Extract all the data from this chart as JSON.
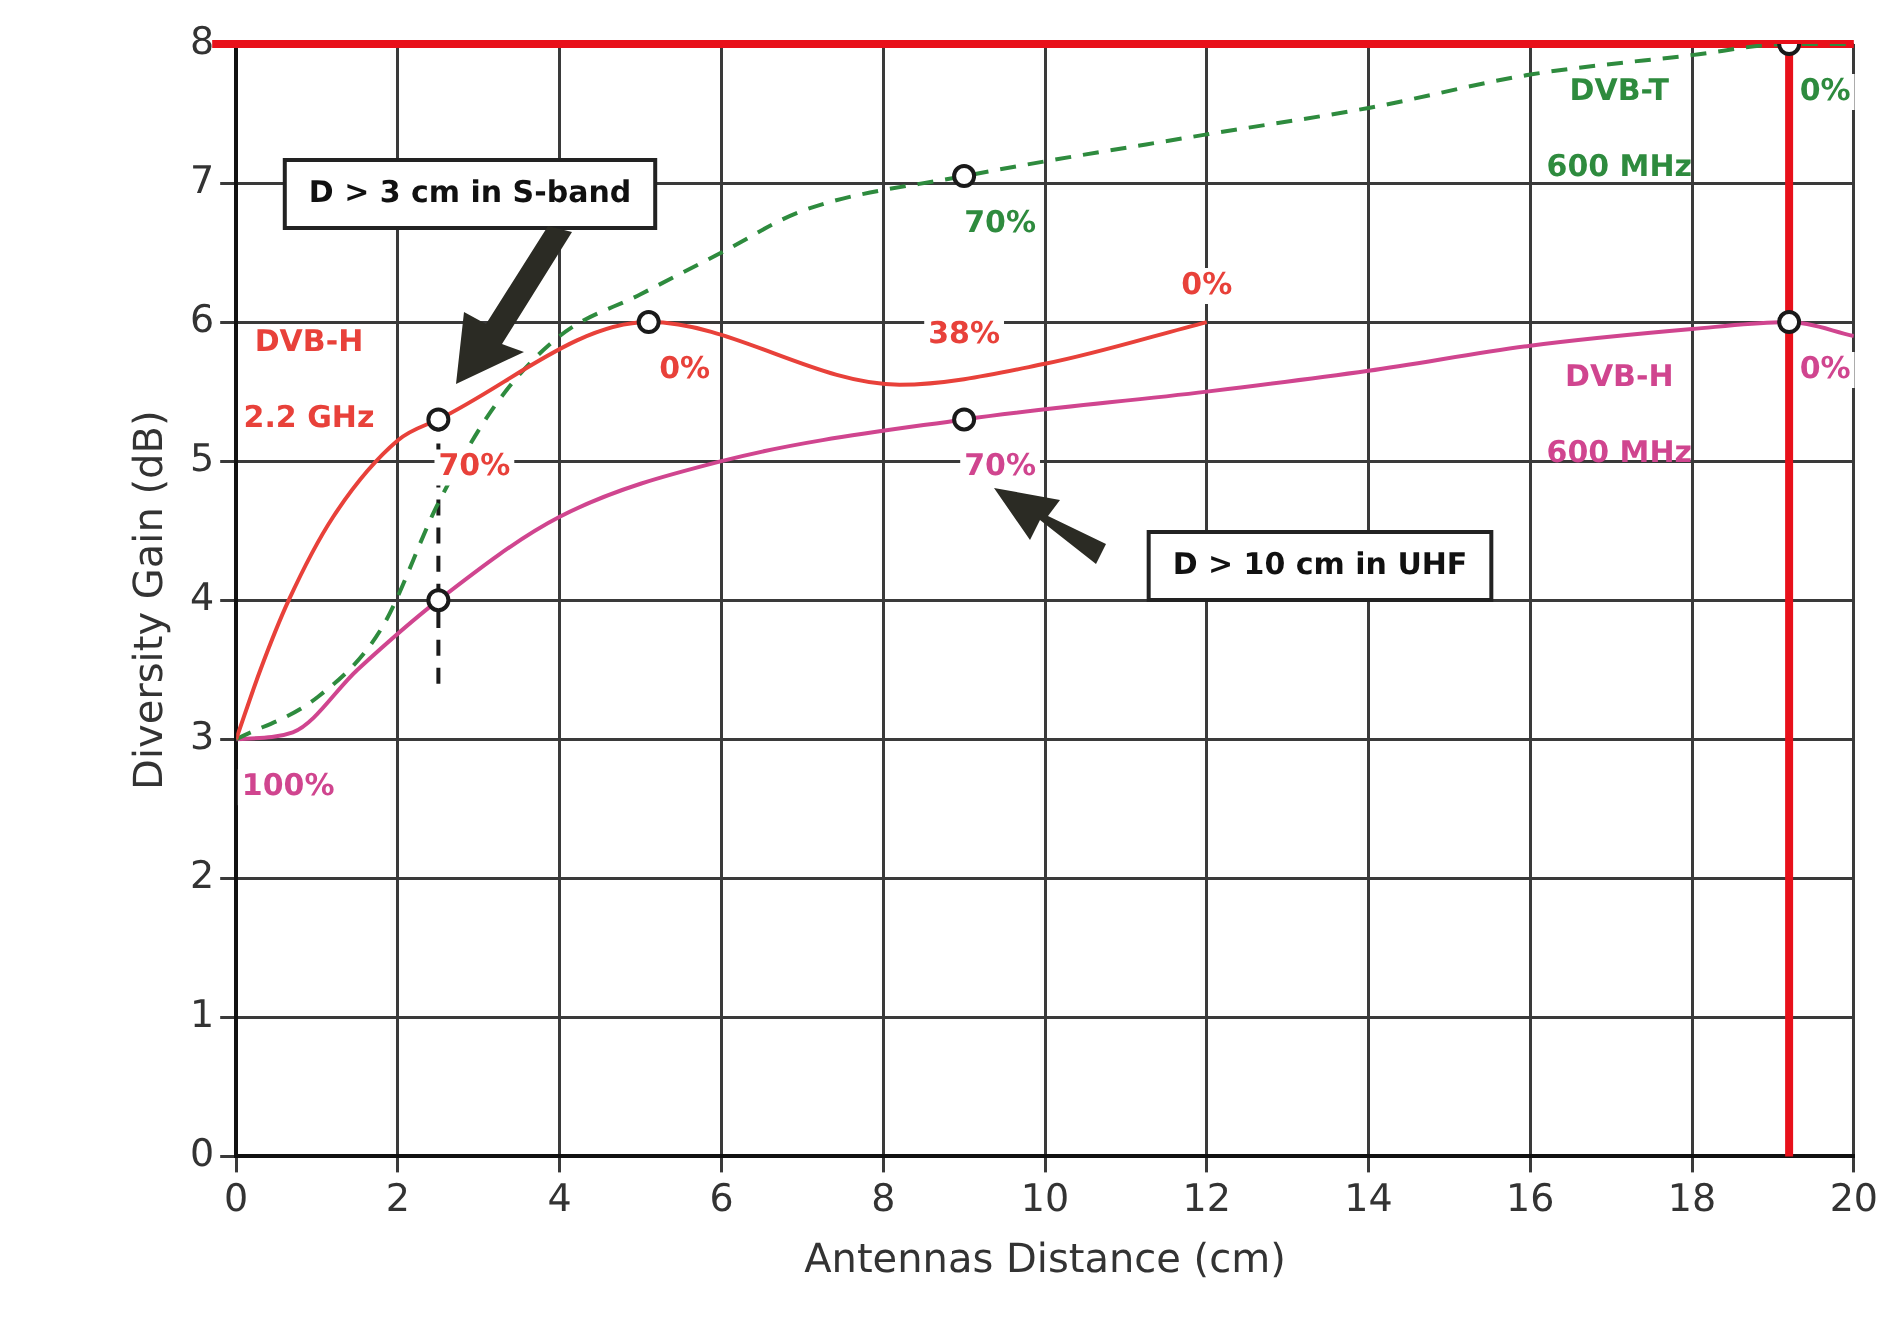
{
  "chart_data": {
    "type": "line",
    "xlabel": "Antennas Distance (cm)",
    "ylabel": "Diversity Gain (dB)",
    "xlim": [
      0,
      20
    ],
    "xticks": [
      0,
      2,
      4,
      6,
      8,
      10,
      12,
      14,
      16,
      18,
      20
    ],
    "ylim": [
      0,
      8
    ],
    "yticks": [
      0,
      1,
      2,
      3,
      4,
      5,
      6,
      7,
      8
    ],
    "grid": true,
    "legend": false,
    "series": [
      {
        "name": "DVB-H 2.2 GHz",
        "color": "#e8413a",
        "type": "line",
        "marker": "none",
        "line_style": "solid",
        "x": [
          0,
          0.3,
          0.65,
          1.2,
          2,
          2.5,
          5.1,
          8.2,
          10,
          12
        ],
        "values": [
          3,
          3.5,
          4,
          4.6,
          5.15,
          5.3,
          6.0,
          5.55,
          5.7,
          6.0
        ]
      },
      {
        "name": "DVB-T 600 MHz",
        "color": "#2e8b3e",
        "type": "line",
        "marker": "none",
        "line_style": "dashed",
        "x": [
          0,
          1,
          1.8,
          2.5,
          3.2,
          4,
          5,
          6,
          7,
          9,
          12,
          14,
          16,
          18,
          19.2,
          20
        ],
        "values": [
          3,
          3.3,
          3.8,
          4.7,
          5.4,
          5.9,
          6.2,
          6.5,
          6.8,
          7.05,
          7.35,
          7.54,
          7.78,
          7.92,
          8.0,
          8.0
        ]
      },
      {
        "name": "DVB-H 600 MHz",
        "color": "#d0458f",
        "type": "line",
        "marker": "none",
        "line_style": "solid",
        "x": [
          0,
          0.7,
          1.5,
          2.5,
          4,
          6,
          9,
          12,
          14,
          16,
          18,
          19.2,
          20
        ],
        "values": [
          3,
          3.05,
          3.5,
          4.0,
          4.6,
          5.0,
          5.3,
          5.5,
          5.65,
          5.83,
          5.95,
          6.0,
          5.9
        ]
      },
      {
        "color": "#1a1a1a",
        "type": "line",
        "marker": "none",
        "line_style": "dashed",
        "x": [
          2.5,
          2.5
        ],
        "values": [
          3.4,
          5.3
        ]
      },
      {
        "color": "#1a1a1a",
        "type": "scatter",
        "marker": "circle",
        "x": [
          2.5,
          2.5,
          5.1,
          9,
          9,
          19.2,
          19.2
        ],
        "values": [
          5.3,
          4.0,
          6.0,
          7.05,
          5.3,
          8.0,
          6.0
        ]
      }
    ],
    "ref_lines": [
      {
        "axis": "y",
        "value": 8,
        "color": "#e8101a"
      },
      {
        "axis": "x",
        "value": 19.2,
        "color": "#e8101a"
      }
    ],
    "annotations": [
      "D > 3 cm in S-band",
      "D > 10 cm in UHF",
      {
        "text": "70%",
        "x": 2.5,
        "y": 5.3
      },
      {
        "text": "0%",
        "x": 5.1,
        "y": 6.0
      },
      {
        "text": "38%",
        "x": 9,
        "y": 5.65
      },
      {
        "text": "0%",
        "x": 12,
        "y": 6.0
      },
      {
        "text": "70%",
        "x": 9,
        "y": 7.05
      },
      {
        "text": "0%",
        "x": 19.2,
        "y": 8.0
      },
      {
        "text": "70%",
        "x": 9,
        "y": 5.3
      },
      {
        "text": "0%",
        "x": 19.2,
        "y": 6.0
      },
      {
        "text": "100%",
        "x": 0,
        "y": 3
      }
    ]
  }
}
